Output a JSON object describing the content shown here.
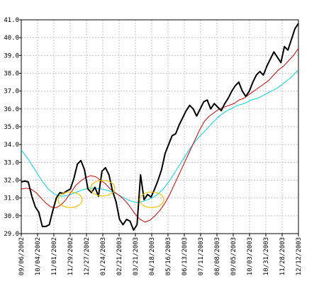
{
  "chart_data": {
    "type": "line",
    "title": "",
    "xlabel": "",
    "ylabel": "",
    "ylim": [
      29.0,
      41.0
    ],
    "yticks": [
      "29.0",
      "30.0",
      "31.0",
      "32.0",
      "33.0",
      "34.0",
      "35.0",
      "36.0",
      "37.0",
      "38.0",
      "39.0",
      "40.0",
      "41.0"
    ],
    "xticks": [
      "09/06/2002",
      "10/04/2002",
      "11/01/2002",
      "11/29/2002",
      "12/27/2002",
      "01/24/2003",
      "02/21/2003",
      "03/21/2003",
      "04/18/2003",
      "05/16/2003",
      "06/13/2003",
      "07/11/2003",
      "08/08/2003",
      "09/05/2003",
      "10/03/2003",
      "10/31/2003",
      "11/28/2003",
      "12/12/2003"
    ],
    "grid": true,
    "colors": {
      "price": "#000000",
      "short_average": "#d40000",
      "long_average": "#00d4e8",
      "highlight": "#f2c200",
      "grid": "#c4c4c4"
    },
    "series": [
      {
        "values": [
          31.9,
          31.95,
          31.9,
          31.1,
          30.5,
          30.2,
          29.4,
          29.4,
          29.5,
          30.3,
          31.0,
          31.3,
          31.25,
          31.4,
          31.5,
          32.1,
          32.9,
          33.1,
          32.6,
          31.5,
          31.3,
          31.6,
          31.1,
          32.5,
          32.7,
          32.3,
          31.4,
          30.8,
          29.8,
          29.5,
          29.8,
          29.7,
          29.2,
          29.5,
          32.3,
          30.9,
          31.2,
          31.05,
          31.5,
          32.0,
          32.6,
          33.5,
          34.0,
          34.5,
          34.6,
          35.1,
          35.5,
          35.9,
          36.2,
          36.0,
          35.6,
          36.0,
          36.4,
          36.5,
          36.0,
          36.3,
          36.1,
          35.9,
          36.3,
          36.6,
          37.0,
          37.3,
          37.5,
          37.0,
          36.7,
          37.0,
          37.5,
          37.9,
          38.1,
          37.9,
          38.4,
          38.8,
          39.2,
          38.9,
          38.6,
          39.5,
          39.3,
          39.9,
          40.5,
          40.8
        ]
      },
      {
        "values": [
          31.5,
          31.55,
          31.5,
          31.3,
          31.0,
          30.7,
          30.5,
          30.45,
          30.6,
          30.9,
          31.3,
          31.7,
          31.95,
          32.15,
          32.25,
          32.2,
          32.0,
          31.8,
          31.5,
          31.3,
          31.1,
          30.85,
          30.5,
          30.1,
          29.8,
          29.65,
          29.75,
          30.0,
          30.3,
          30.7,
          31.2,
          31.8,
          32.4,
          33.0,
          33.6,
          34.2,
          34.8,
          35.3,
          35.6,
          35.8,
          36.0,
          36.1,
          36.2,
          36.3,
          36.5,
          36.6,
          36.8,
          37.0,
          37.2,
          37.4,
          37.6,
          37.9,
          38.2,
          38.4,
          38.7,
          39.0,
          39.4
        ]
      },
      {
        "values": [
          33.7,
          33.2,
          32.6,
          32.0,
          31.5,
          31.2,
          31.1,
          31.15,
          31.3,
          31.45,
          31.55,
          31.55,
          31.5,
          31.4,
          31.25,
          31.05,
          30.85,
          30.75,
          30.8,
          30.95,
          31.15,
          31.5,
          32.0,
          32.6,
          33.2,
          33.8,
          34.3,
          34.7,
          35.1,
          35.5,
          35.8,
          36.0,
          36.2,
          36.3,
          36.5,
          36.6,
          36.8,
          37.0,
          37.2,
          37.5,
          37.8,
          38.2
        ]
      }
    ],
    "highlights": [
      {
        "x": "11/29/2002",
        "y": 30.9
      },
      {
        "x": "01/24/2003",
        "y": 31.55
      },
      {
        "x": "04/18/2003",
        "y": 30.9
      }
    ]
  }
}
